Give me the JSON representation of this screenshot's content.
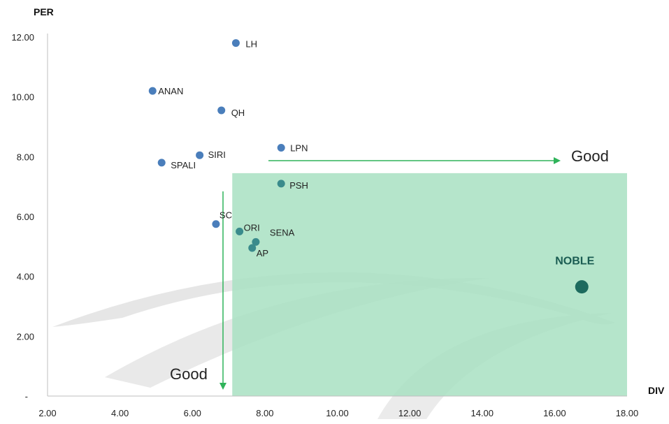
{
  "chart_data": {
    "type": "scatter",
    "xlabel": "DIV",
    "ylabel": "PER",
    "xlim": [
      2,
      18
    ],
    "ylim": [
      0,
      12
    ],
    "x_ticks": [
      "2.00",
      "4.00",
      "6.00",
      "8.00",
      "10.00",
      "12.00",
      "14.00",
      "16.00",
      "18.00"
    ],
    "y_ticks": [
      "-",
      "2.00",
      "4.00",
      "6.00",
      "8.00",
      "10.00",
      "12.00"
    ],
    "grid": false,
    "points": [
      {
        "label": "LH",
        "x": 7.2,
        "y": 11.8
      },
      {
        "label": "ANAN",
        "x": 4.9,
        "y": 10.2
      },
      {
        "label": "QH",
        "x": 6.8,
        "y": 9.55
      },
      {
        "label": "LPN",
        "x": 8.45,
        "y": 8.3
      },
      {
        "label": "SIRI",
        "x": 6.2,
        "y": 8.05
      },
      {
        "label": "SPALI",
        "x": 5.15,
        "y": 7.8
      },
      {
        "label": "PSH",
        "x": 8.45,
        "y": 7.1
      },
      {
        "label": "SC",
        "x": 6.65,
        "y": 5.75
      },
      {
        "label": "ORI",
        "x": 7.3,
        "y": 5.5
      },
      {
        "label": "SENA",
        "x": 7.75,
        "y": 5.15
      },
      {
        "label": "AP",
        "x": 7.65,
        "y": 4.95
      }
    ],
    "highlight_point": {
      "label": "NOBLE",
      "x": 16.75,
      "y": 3.65
    },
    "good_zone": {
      "x_min": 7.1,
      "x_max": 18,
      "y_min": 0,
      "y_max": 7.45
    },
    "annotations": [
      {
        "text": "Good",
        "direction": "right"
      },
      {
        "text": "Good",
        "direction": "down"
      }
    ],
    "colors": {
      "point": "#4a7ebb",
      "point_in_zone": "#3a8b8c",
      "highlight_point": "#1d6b5e",
      "zone_fill": "#a8e0c2",
      "arrow": "#2fb35a",
      "watermark": "#d9d9d9"
    }
  }
}
